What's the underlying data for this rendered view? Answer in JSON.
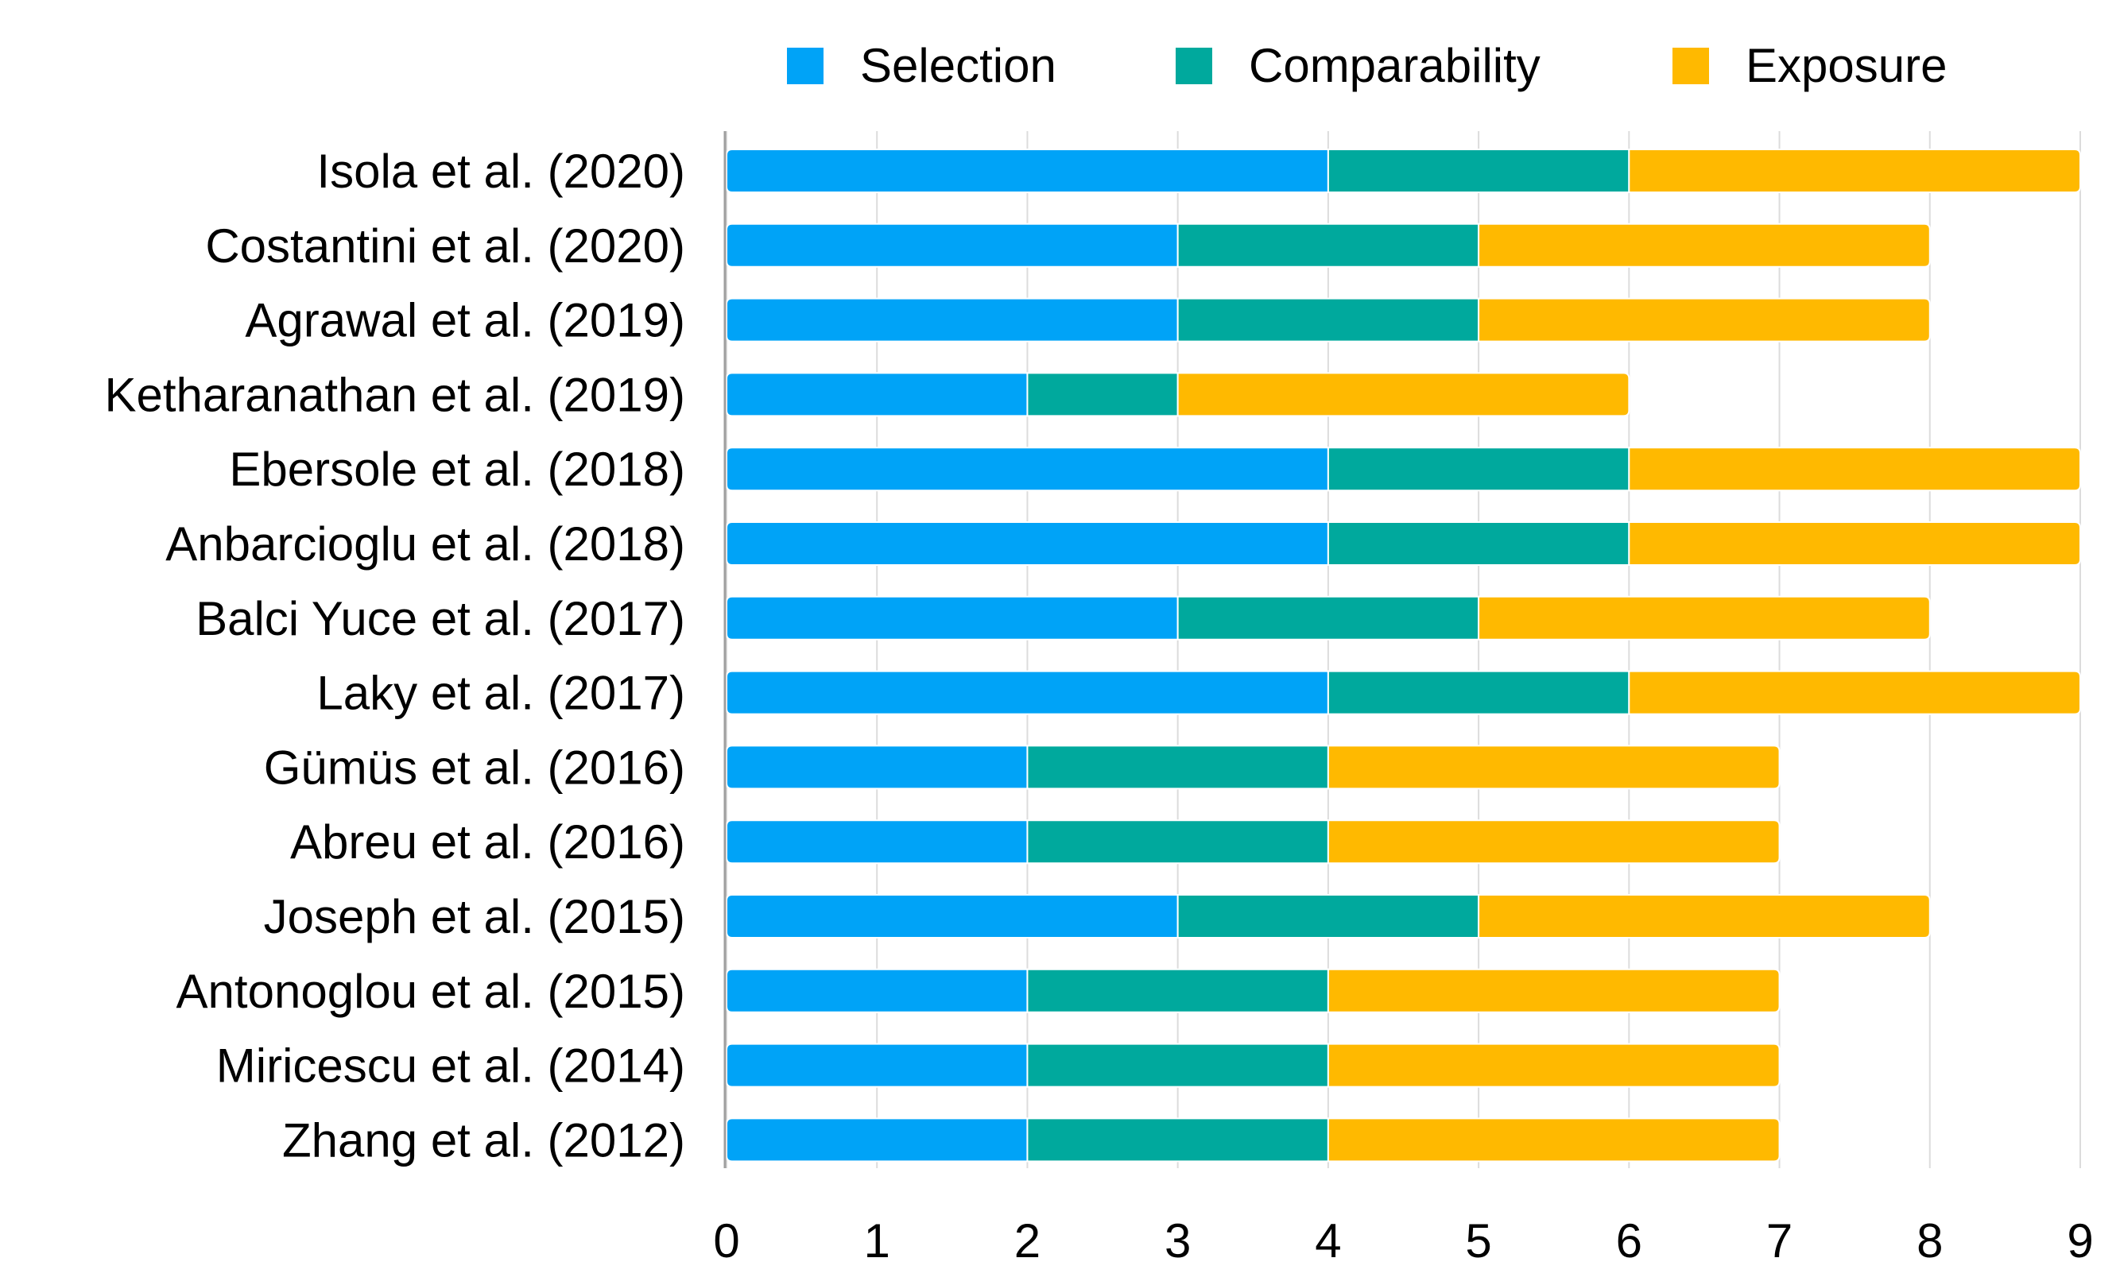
{
  "chart_data": {
    "type": "bar",
    "orientation": "horizontal",
    "stacked": true,
    "categories": [
      "Isola et al. (2020)",
      "Costantini et al. (2020)",
      "Agrawal et al. (2019)",
      "Ketharanathan et al. (2019)",
      "Ebersole et al. (2018)",
      "Anbarcioglu et al. (2018)",
      "Balci Yuce et al. (2017)",
      "Laky et al. (2017)",
      "Gümüs et al. (2016)",
      "Abreu et al. (2016)",
      "Joseph et al. (2015)",
      "Antonoglou et al. (2015)",
      "Miricescu et al. (2014)",
      "Zhang et al. (2012)"
    ],
    "series": [
      {
        "name": "Selection",
        "color": "#00A3F7",
        "values": [
          4,
          3,
          3,
          2,
          4,
          4,
          3,
          4,
          2,
          2,
          3,
          2,
          2,
          2
        ]
      },
      {
        "name": "Comparability",
        "color": "#00A99D",
        "values": [
          2,
          2,
          2,
          1,
          2,
          2,
          2,
          2,
          2,
          2,
          2,
          2,
          2,
          2
        ]
      },
      {
        "name": "Exposure",
        "color": "#FFB900",
        "values": [
          3,
          3,
          3,
          3,
          3,
          3,
          3,
          3,
          3,
          3,
          3,
          3,
          3,
          3
        ]
      }
    ],
    "xlim": [
      0,
      9
    ],
    "xticks": [
      "0",
      "1",
      "2",
      "3",
      "4",
      "5",
      "6",
      "7",
      "8",
      "9"
    ],
    "grid": "vertical",
    "legend": "top"
  }
}
